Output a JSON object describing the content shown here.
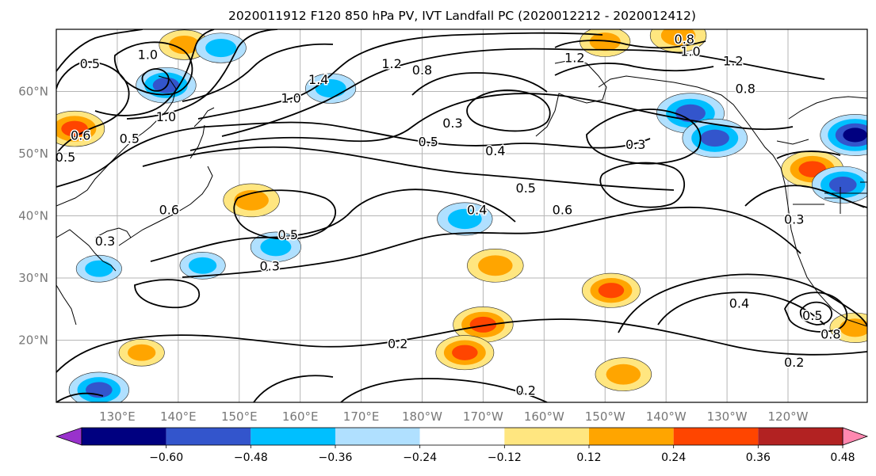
{
  "chart_data": {
    "type": "heatmap",
    "title": "2020011912 F120 850 hPa PV, IVT Landfall PC (2020012212 - 2020012412)",
    "xlabel": "",
    "ylabel": "",
    "x_ticks": [
      "130°E",
      "140°E",
      "150°E",
      "160°E",
      "170°E",
      "180°W",
      "170°W",
      "160°W",
      "150°W",
      "140°W",
      "130°W",
      "120°W"
    ],
    "y_ticks": [
      "60°N",
      "50°N",
      "40°N",
      "30°N",
      "20°N"
    ],
    "lon_range_east": [
      120,
      253
    ],
    "lat_range": [
      10,
      70
    ],
    "grid": true,
    "colorbar": {
      "orientation": "horizontal",
      "placement": "bottom",
      "extend": "both",
      "levels": [
        -0.6,
        -0.48,
        -0.36,
        -0.24,
        -0.12,
        0.12,
        0.24,
        0.36,
        0.48,
        0.6
      ],
      "tick_labels": [
        "−0.60",
        "−0.48",
        "−0.36",
        "−0.24",
        "−0.12",
        "0.12",
        "0.24",
        "0.36",
        "0.48",
        "0.60"
      ],
      "colors": [
        "#9932cc",
        "#000080",
        "#3355cc",
        "#00bfff",
        "#b0e0ff",
        "#ffffff",
        "#ffe680",
        "#ffa500",
        "#ff4500",
        "#b22222",
        "#ff88b0"
      ]
    },
    "contour_labels": [
      {
        "text": "0.5",
        "lon": 125.5,
        "lat": 64.5
      },
      {
        "text": "1.0",
        "lon": 135,
        "lat": 66
      },
      {
        "text": "1.0",
        "lon": 138,
        "lat": 56
      },
      {
        "text": "0.5",
        "lon": 132,
        "lat": 52.5
      },
      {
        "text": "0.5",
        "lon": 121.5,
        "lat": 49.5
      },
      {
        "text": "0.6",
        "lon": 124,
        "lat": 53
      },
      {
        "text": "0.6",
        "lon": 138.5,
        "lat": 41
      },
      {
        "text": "0.3",
        "lon": 128,
        "lat": 36
      },
      {
        "text": "1.2",
        "lon": 175,
        "lat": 64.5
      },
      {
        "text": "1.4",
        "lon": 163,
        "lat": 62
      },
      {
        "text": "1.0",
        "lon": 158.5,
        "lat": 59
      },
      {
        "text": "0.8",
        "lon": 180,
        "lat": 63.5
      },
      {
        "text": "0.3",
        "lon": 185,
        "lat": 55
      },
      {
        "text": "0.5",
        "lon": 181,
        "lat": 52
      },
      {
        "text": "0.4",
        "lon": 192,
        "lat": 50.5
      },
      {
        "text": "0.4",
        "lon": 189,
        "lat": 41
      },
      {
        "text": "0.5",
        "lon": 197,
        "lat": 44.5
      },
      {
        "text": "0.6",
        "lon": 203,
        "lat": 41
      },
      {
        "text": "0.5",
        "lon": 158,
        "lat": 37
      },
      {
        "text": "0.3",
        "lon": 155,
        "lat": 32
      },
      {
        "text": "1.2",
        "lon": 205,
        "lat": 65.5
      },
      {
        "text": "1.0",
        "lon": 224,
        "lat": 66.5
      },
      {
        "text": "1.2",
        "lon": 231,
        "lat": 65
      },
      {
        "text": "0.8",
        "lon": 223,
        "lat": 68.5
      },
      {
        "text": "0.8",
        "lon": 233,
        "lat": 60.5
      },
      {
        "text": "0.3",
        "lon": 215,
        "lat": 51.5
      },
      {
        "text": "0.3",
        "lon": 241,
        "lat": 39.5
      },
      {
        "text": "0.2",
        "lon": 176,
        "lat": 19.5
      },
      {
        "text": "0.2",
        "lon": 197,
        "lat": 12
      },
      {
        "text": "0.2",
        "lon": 241,
        "lat": 16.5
      },
      {
        "text": "0.4",
        "lon": 232,
        "lat": 26
      },
      {
        "text": "0.5",
        "lon": 244,
        "lat": 24
      },
      {
        "text": "0.8",
        "lon": 247,
        "lat": 21
      }
    ],
    "ivt_pc_anomalies": [
      {
        "lon": 123,
        "lat": 54,
        "value": 0.4
      },
      {
        "lon": 152,
        "lat": 42.5,
        "value": 0.36
      },
      {
        "lon": 141,
        "lat": 67.5,
        "value": 0.3
      },
      {
        "lon": 147,
        "lat": 67,
        "value": -0.3
      },
      {
        "lon": 138,
        "lat": 61,
        "value": -0.4
      },
      {
        "lon": 165,
        "lat": 60.5,
        "value": -0.3
      },
      {
        "lon": 156,
        "lat": 35,
        "value": -0.3
      },
      {
        "lon": 144,
        "lat": 32,
        "value": -0.25
      },
      {
        "lon": 127,
        "lat": 31.5,
        "value": -0.25
      },
      {
        "lon": 127,
        "lat": 12,
        "value": -0.4
      },
      {
        "lon": 134,
        "lat": 18,
        "value": 0.25
      },
      {
        "lon": 187,
        "lat": 39.5,
        "value": -0.35
      },
      {
        "lon": 192,
        "lat": 32,
        "value": 0.36
      },
      {
        "lon": 190,
        "lat": 22.5,
        "value": 0.4
      },
      {
        "lon": 187,
        "lat": 18,
        "value": 0.38
      },
      {
        "lon": 211,
        "lat": 28,
        "value": 0.38
      },
      {
        "lon": 213,
        "lat": 14.5,
        "value": 0.36
      },
      {
        "lon": 210,
        "lat": 68,
        "value": 0.3
      },
      {
        "lon": 222,
        "lat": 69,
        "value": 0.36
      },
      {
        "lon": 224,
        "lat": 56.5,
        "value": -0.48
      },
      {
        "lon": 228,
        "lat": 52.5,
        "value": -0.45
      },
      {
        "lon": 244,
        "lat": 47.5,
        "value": 0.42
      },
      {
        "lon": 251,
        "lat": 53,
        "value": -0.5
      },
      {
        "lon": 249,
        "lat": 45,
        "value": -0.42
      },
      {
        "lon": 251,
        "lat": 22,
        "value": 0.3
      }
    ]
  }
}
